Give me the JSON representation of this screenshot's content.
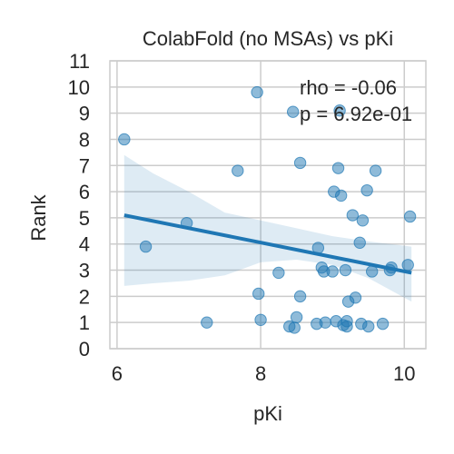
{
  "chart_data": {
    "type": "scatter",
    "title": "ColabFold (no MSAs) vs pKi",
    "xlabel": "pKi",
    "ylabel": "Rank",
    "xlim": [
      5.9,
      10.3
    ],
    "ylim": [
      0,
      11
    ],
    "xticks": [
      6,
      8,
      10
    ],
    "yticks": [
      0,
      1,
      2,
      3,
      4,
      5,
      6,
      7,
      8,
      9,
      10,
      11
    ],
    "grid": true,
    "annotations": [
      "rho = -0.06",
      "p = 6.92e-01"
    ],
    "colors": {
      "points": "#1f77b4",
      "line": "#1f77b4",
      "band": "#1f77b4"
    },
    "points": [
      {
        "x": 6.1,
        "y": 8
      },
      {
        "x": 6.4,
        "y": 3.9
      },
      {
        "x": 6.97,
        "y": 4.8
      },
      {
        "x": 7.25,
        "y": 1
      },
      {
        "x": 7.68,
        "y": 6.8
      },
      {
        "x": 7.95,
        "y": 9.8
      },
      {
        "x": 7.97,
        "y": 2.1
      },
      {
        "x": 8.0,
        "y": 1.1
      },
      {
        "x": 8.25,
        "y": 2.9
      },
      {
        "x": 8.4,
        "y": 0.85
      },
      {
        "x": 8.45,
        "y": 9.05
      },
      {
        "x": 8.47,
        "y": 0.8
      },
      {
        "x": 8.5,
        "y": 1.2
      },
      {
        "x": 8.55,
        "y": 7.1
      },
      {
        "x": 8.55,
        "y": 2.0
      },
      {
        "x": 8.78,
        "y": 0.95
      },
      {
        "x": 8.8,
        "y": 3.85
      },
      {
        "x": 8.85,
        "y": 3.1
      },
      {
        "x": 8.88,
        "y": 2.95
      },
      {
        "x": 8.9,
        "y": 1.0
      },
      {
        "x": 9.0,
        "y": 2.95
      },
      {
        "x": 9.02,
        "y": 6.0
      },
      {
        "x": 9.05,
        "y": 1.05
      },
      {
        "x": 9.08,
        "y": 6.9
      },
      {
        "x": 9.1,
        "y": 9.1
      },
      {
        "x": 9.12,
        "y": 5.85
      },
      {
        "x": 9.15,
        "y": 0.9
      },
      {
        "x": 9.18,
        "y": 3.0
      },
      {
        "x": 9.2,
        "y": 0.85
      },
      {
        "x": 9.2,
        "y": 1.05
      },
      {
        "x": 9.22,
        "y": 1.8
      },
      {
        "x": 9.28,
        "y": 5.1
      },
      {
        "x": 9.32,
        "y": 1.95
      },
      {
        "x": 9.38,
        "y": 4.05
      },
      {
        "x": 9.4,
        "y": 0.95
      },
      {
        "x": 9.42,
        "y": 4.9
      },
      {
        "x": 9.48,
        "y": 6.05
      },
      {
        "x": 9.5,
        "y": 0.85
      },
      {
        "x": 9.55,
        "y": 2.95
      },
      {
        "x": 9.6,
        "y": 6.8
      },
      {
        "x": 9.7,
        "y": 0.95
      },
      {
        "x": 9.8,
        "y": 3.0
      },
      {
        "x": 9.82,
        "y": 3.1
      },
      {
        "x": 10.05,
        "y": 3.2
      },
      {
        "x": 10.08,
        "y": 5.05
      }
    ],
    "regression": {
      "x": [
        6.1,
        10.1
      ],
      "y": [
        5.1,
        2.9
      ]
    },
    "ci_band": {
      "x": [
        6.1,
        6.5,
        7.0,
        7.5,
        8.0,
        8.5,
        9.0,
        9.5,
        10.1
      ],
      "upper": [
        7.4,
        6.7,
        6.0,
        5.2,
        4.9,
        4.6,
        4.3,
        4.1,
        3.9
      ],
      "lower": [
        2.4,
        2.5,
        2.6,
        2.8,
        3.3,
        3.4,
        3.2,
        2.7,
        1.8
      ]
    }
  }
}
